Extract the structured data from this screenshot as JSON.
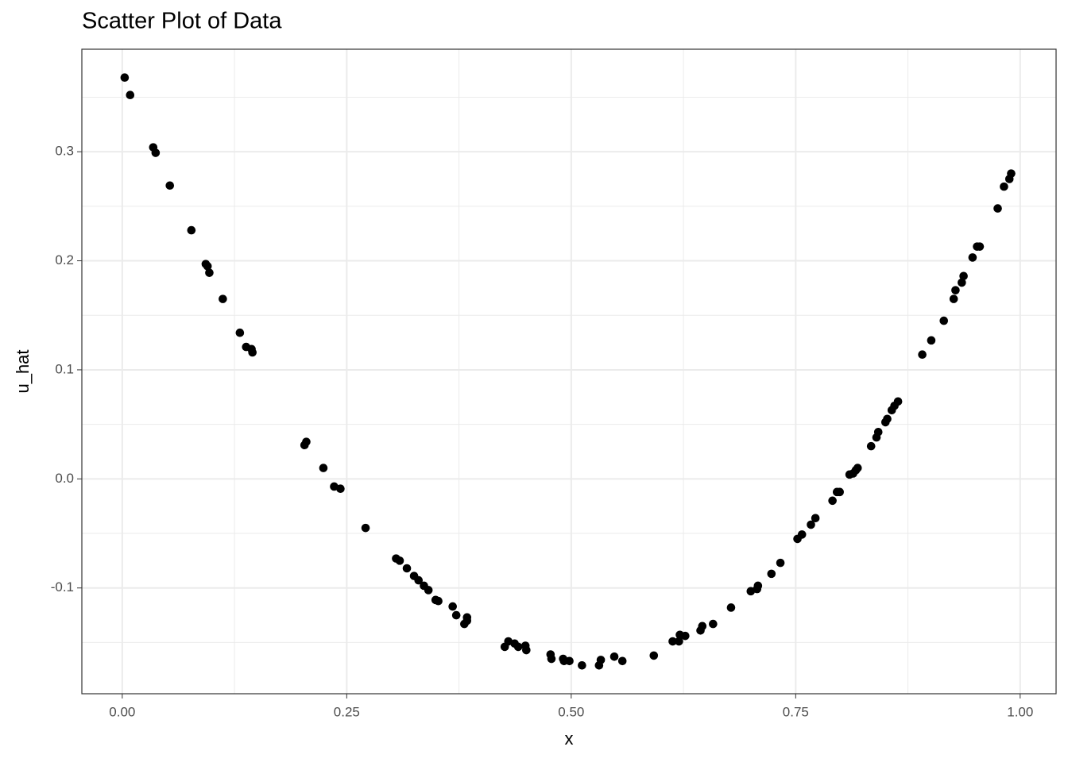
{
  "chart_data": {
    "type": "scatter",
    "title": "Scatter Plot of Data",
    "x_label": "x",
    "y_label": "u_hat",
    "color": "#000000",
    "grid": true,
    "xlim": [
      -0.045,
      1.04
    ],
    "ylim": [
      -0.197,
      0.394
    ],
    "xticks": [
      {
        "value": 0,
        "label": "0.00"
      },
      {
        "value": 0.25,
        "label": "0.25"
      },
      {
        "value": 0.5,
        "label": "0.50"
      },
      {
        "value": 0.75,
        "label": "0.75"
      },
      {
        "value": 1,
        "label": "1.00"
      }
    ],
    "yticks": [
      -0.1,
      {
        "value": 0,
        "label": "0.0"
      },
      0.1,
      0.2,
      0.3
    ],
    "minor_xticks": [
      0.125,
      0.375,
      0.625,
      0.875
    ],
    "minor_yticks": [
      -0.15,
      -0.05,
      0.05,
      0.15,
      0.25,
      0.35
    ],
    "x": [
      0.0027,
      0.0088,
      0.0345,
      0.0372,
      0.053,
      0.077,
      0.093,
      0.095,
      0.097,
      0.112,
      0.131,
      0.138,
      0.144,
      0.145,
      0.203,
      0.205,
      0.224,
      0.236,
      0.243,
      0.271,
      0.305,
      0.309,
      0.317,
      0.325,
      0.33,
      0.336,
      0.341,
      0.349,
      0.352,
      0.368,
      0.372,
      0.381,
      0.384,
      0.384,
      0.426,
      0.43,
      0.437,
      0.441,
      0.449,
      0.45,
      0.477,
      0.478,
      0.491,
      0.492,
      0.498,
      0.512,
      0.531,
      0.533,
      0.548,
      0.557,
      0.592,
      0.613,
      0.62,
      0.621,
      0.627,
      0.644,
      0.646,
      0.658,
      0.678,
      0.7,
      0.707,
      0.708,
      0.723,
      0.733,
      0.752,
      0.757,
      0.767,
      0.772,
      0.791,
      0.796,
      0.799,
      0.81,
      0.814,
      0.817,
      0.819,
      0.834,
      0.84,
      0.842,
      0.85,
      0.852,
      0.857,
      0.86,
      0.864,
      0.891,
      0.901,
      0.915,
      0.926,
      0.928,
      0.935,
      0.937,
      0.947,
      0.952,
      0.955,
      0.975,
      0.982,
      0.988,
      0.99
    ],
    "values": [
      0.368,
      0.352,
      0.304,
      0.299,
      0.269,
      0.228,
      0.197,
      0.195,
      0.189,
      0.165,
      0.134,
      0.121,
      0.119,
      0.116,
      0.031,
      0.034,
      0.01,
      -0.007,
      -0.009,
      -0.045,
      -0.073,
      -0.075,
      -0.082,
      -0.089,
      -0.093,
      -0.098,
      -0.102,
      -0.111,
      -0.112,
      -0.117,
      -0.125,
      -0.133,
      -0.127,
      -0.13,
      -0.154,
      -0.149,
      -0.151,
      -0.154,
      -0.153,
      -0.157,
      -0.161,
      -0.165,
      -0.165,
      -0.167,
      -0.167,
      -0.171,
      -0.171,
      -0.166,
      -0.163,
      -0.167,
      -0.162,
      -0.149,
      -0.149,
      -0.143,
      -0.144,
      -0.139,
      -0.135,
      -0.133,
      -0.118,
      -0.103,
      -0.101,
      -0.098,
      -0.087,
      -0.077,
      -0.055,
      -0.051,
      -0.042,
      -0.036,
      -0.02,
      -0.012,
      -0.012,
      0.004,
      0.005,
      0.008,
      0.01,
      0.03,
      0.038,
      0.043,
      0.052,
      0.055,
      0.063,
      0.067,
      0.071,
      0.114,
      0.127,
      0.145,
      0.165,
      0.173,
      0.18,
      0.186,
      0.203,
      0.213,
      0.213,
      0.248,
      0.268,
      0.275,
      0.28
    ]
  }
}
